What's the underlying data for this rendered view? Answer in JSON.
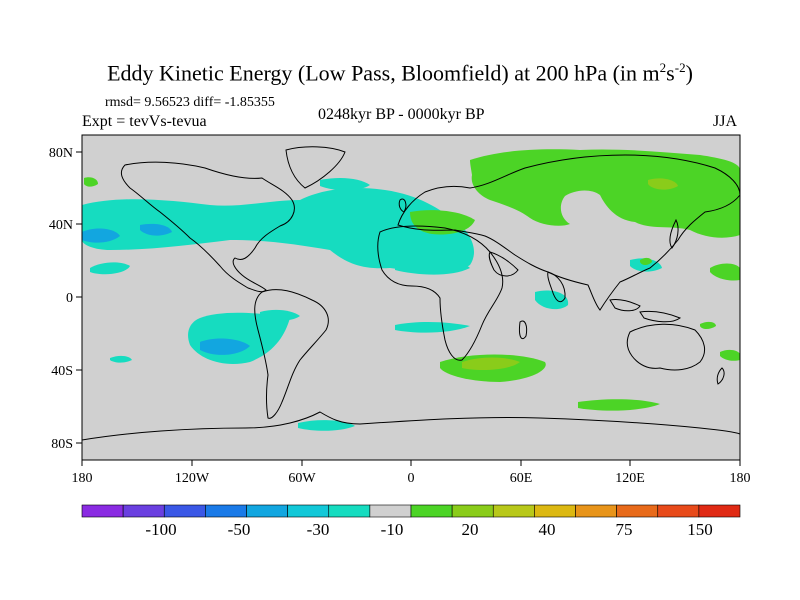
{
  "title": {
    "main": "Eddy Kinetic Energy (Low Pass, Bloomfield) at 200 hPa (in m",
    "sup1": "2",
    "mid": "s",
    "sup2": "-2",
    "end": ")"
  },
  "stats": "rmsd= 9.56523 diff= -1.85355",
  "experiment": "Expt = tevVs-tevua",
  "period": "0248kyr BP - 0000kyr BP",
  "season": "JJA",
  "map": {
    "land_color": "#d0d0d0",
    "lat_ticks": [
      "80N",
      "40N",
      "0",
      "40S",
      "80S"
    ],
    "lon_ticks": [
      "180",
      "120W",
      "60W",
      "0",
      "60E",
      "120E",
      "180"
    ]
  },
  "colorbar": {
    "colors": [
      "#8a2be2",
      "#6a3fe0",
      "#3a57e6",
      "#1a7ae8",
      "#12a6e0",
      "#12c8d8",
      "#16dcc0",
      "#d0d0d0",
      "#4cd426",
      "#8acc1a",
      "#b8c81a",
      "#dcb812",
      "#e8941a",
      "#e86a1a",
      "#e84a1a",
      "#e02a14"
    ],
    "labels": [
      "-100",
      "-50",
      "-30",
      "-10",
      "20",
      "40",
      "75",
      "150"
    ]
  }
}
